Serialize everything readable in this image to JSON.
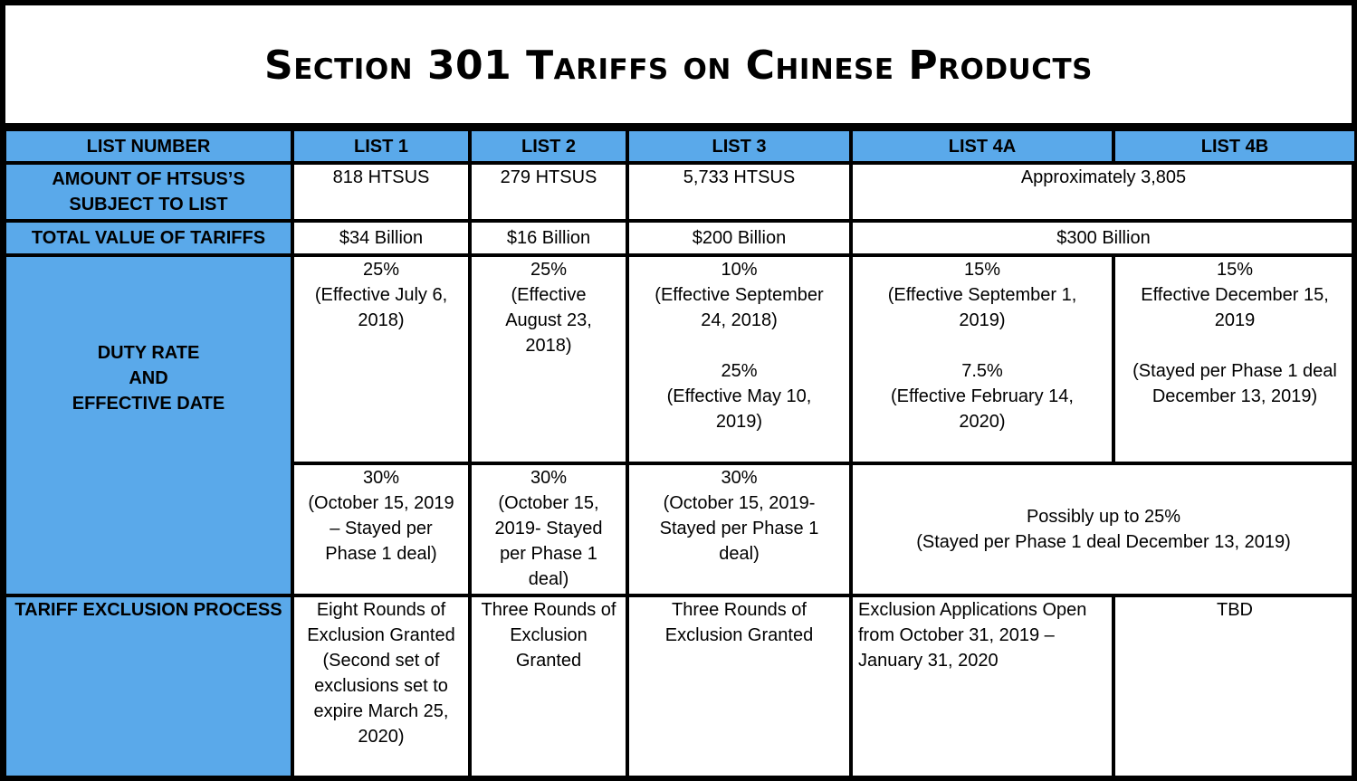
{
  "title": "Section 301 Tariffs on Chinese Products",
  "colors": {
    "header_blue": "#5aa9ea",
    "border": "#000000",
    "background": "#ffffff"
  },
  "headers": {
    "list_number": "LIST NUMBER",
    "list1": "LIST 1",
    "list2": "LIST 2",
    "list3": "LIST 3",
    "list4a": "LIST 4A",
    "list4b": "LIST 4B"
  },
  "rows": {
    "htsus": {
      "label": "AMOUNT OF HTSUS’S\nSUBJECT TO LIST",
      "list1": "818 HTSUS",
      "list2": "279 HTSUS",
      "list3": "5,733 HTSUS",
      "list4": "Approximately 3,805"
    },
    "value": {
      "label": "TOTAL VALUE OF TARIFFS",
      "list1": "$34 Billion",
      "list2": "$16 Billion",
      "list3": "$200 Billion",
      "list4": "$300 Billion"
    },
    "duty": {
      "label": "DUTY RATE\nAND\nEFFECTIVE DATE",
      "list1_a": "25%\n(Effective July 6,\n2018)",
      "list2_a": "25%\n(Effective\nAugust 23,\n2018)",
      "list3_a1": "10%\n(Effective September\n24, 2018)",
      "list3_a2": "25%\n(Effective May 10,\n2019)",
      "list4a_a1": "15%\n(Effective September 1,\n2019)",
      "list4a_a2": "7.5%\n(Effective February 14,\n2020)",
      "list4b_a1": "15%\nEffective December 15,\n2019",
      "list4b_a2": "(Stayed per Phase 1 deal\nDecember 13, 2019)",
      "list1_b": "30%\n(October 15, 2019\n– Stayed per\nPhase 1 deal)",
      "list2_b": "30%\n(October 15,\n2019- Stayed\nper Phase 1\ndeal)",
      "list3_b": "30%\n(October 15, 2019-\nStayed per Phase 1\ndeal)",
      "list4_b": "Possibly up to 25%\n(Stayed per Phase 1 deal December 13, 2019)"
    },
    "exclusion": {
      "label": "TARIFF EXCLUSION PROCESS",
      "list1": "Eight Rounds of\nExclusion Granted\n(Second set of\nexclusions set to\nexpire March 25,\n2020)",
      "list2": "Three Rounds of\nExclusion\nGranted",
      "list3": "Three Rounds of\nExclusion Granted",
      "list4a": "Exclusion Applications Open\nfrom October 31, 2019 –\nJanuary 31, 2020",
      "list4b": "TBD"
    }
  }
}
